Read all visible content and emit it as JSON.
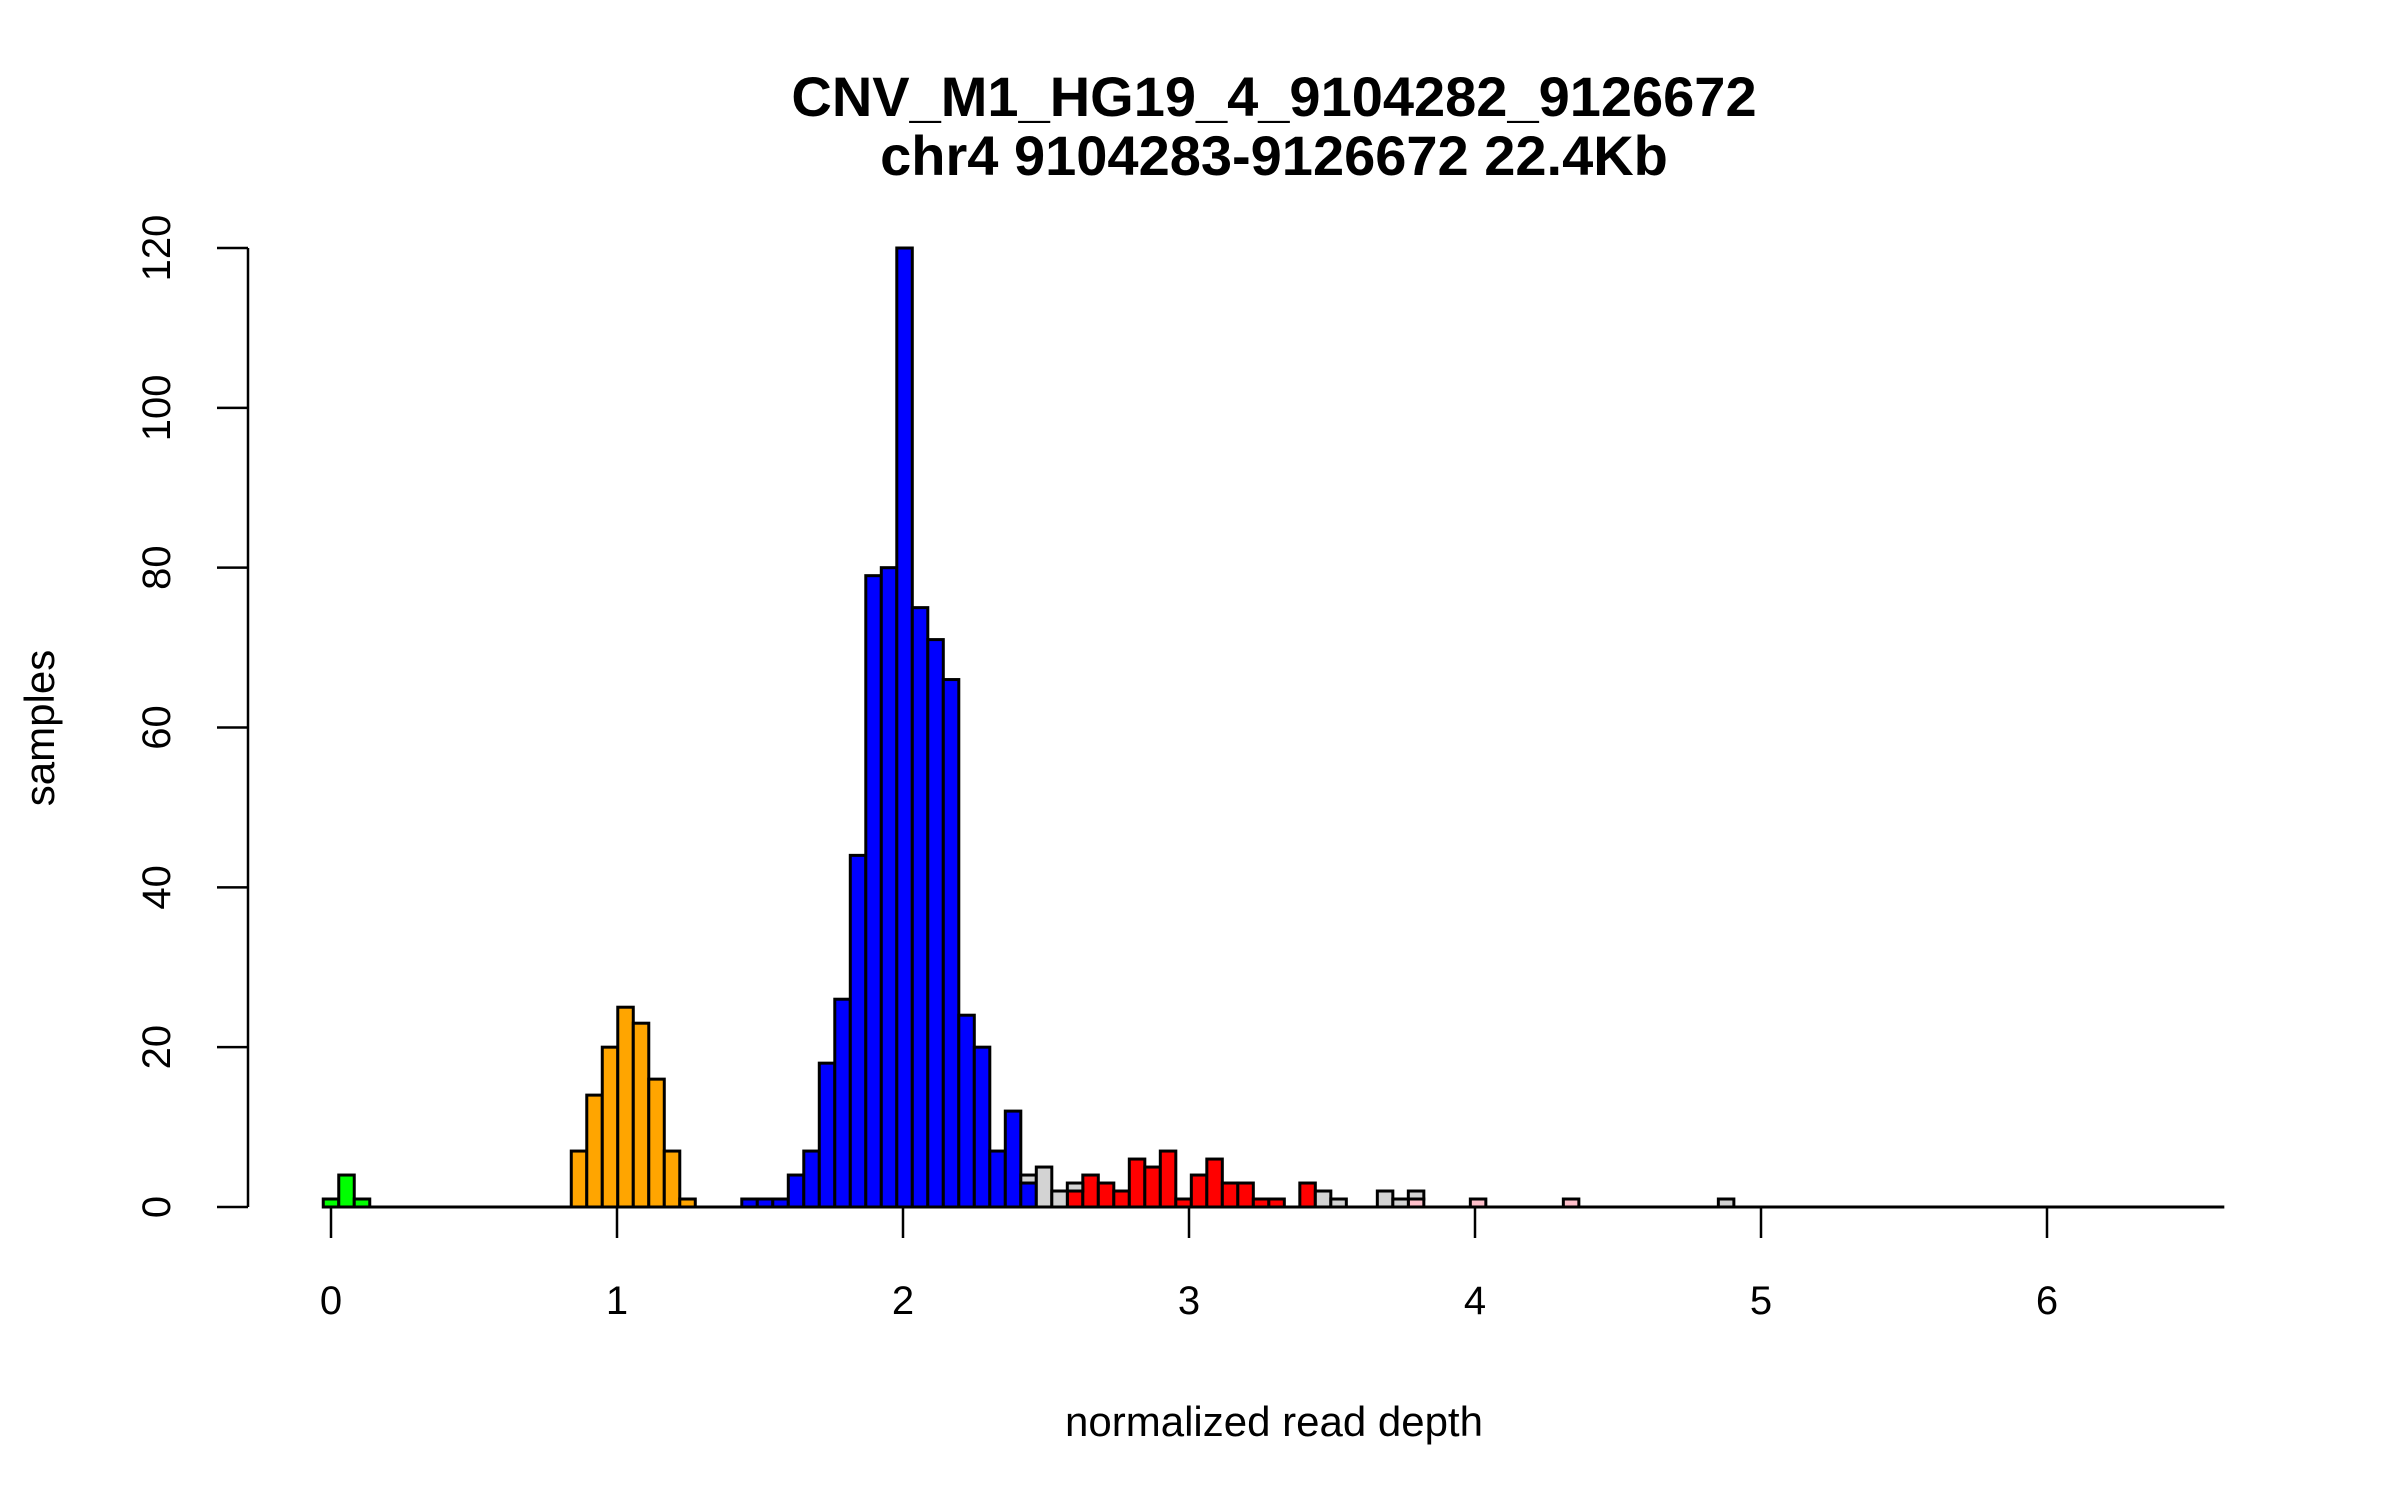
{
  "chart_data": {
    "type": "bar",
    "subtype": "histogram",
    "title": "CNV_M1_HG19_4_9104282_9126672",
    "subtitle": "chr4 9104283-9126672 22.4Kb",
    "xlabel": "normalized read depth",
    "ylabel": "samples",
    "xlim": [
      -0.27,
      6.62
    ],
    "ylim": [
      0,
      120
    ],
    "x_ticks": [
      "0",
      "1",
      "2",
      "3",
      "4",
      "5",
      "6"
    ],
    "y_ticks": [
      "0",
      "20",
      "40",
      "60",
      "80",
      "100",
      "120"
    ],
    "grid": false,
    "bin_width": 0.0542,
    "x_end": 6.62,
    "series": [
      {
        "name": "green",
        "color": "#00ff00",
        "first_bin": 0,
        "counts": [
          1,
          4,
          1
        ]
      },
      {
        "name": "orange",
        "color": "#ffa500",
        "first_bin": 16,
        "counts": [
          7,
          14,
          20,
          25,
          23,
          16,
          7,
          1
        ]
      },
      {
        "name": "blue",
        "color": "#0000ff",
        "first_bin": 27,
        "counts": [
          1,
          1,
          1,
          4,
          7,
          18,
          26,
          44,
          79,
          80,
          120,
          75,
          71,
          66,
          24,
          20,
          7,
          12,
          3
        ]
      },
      {
        "name": "red",
        "color": "#ff0000",
        "first_bin": 48,
        "counts": [
          2,
          4,
          3,
          2,
          6,
          5,
          7,
          1,
          4,
          6,
          3,
          3,
          1,
          1,
          0,
          3
        ]
      },
      {
        "name": "pink",
        "color": "#ffc0cb",
        "first_bin": 70,
        "counts": [
          1,
          0,
          0,
          0,
          1,
          0,
          0,
          0,
          0,
          0,
          1
        ]
      },
      {
        "name": "grey",
        "color": "#d3d3d3",
        "first_bin": 45,
        "counts": [
          1,
          5,
          2,
          1,
          0,
          0,
          0,
          0,
          0,
          0,
          0,
          0,
          0,
          0,
          0,
          0,
          0,
          0,
          0,
          2,
          1,
          0,
          0,
          2,
          1,
          1,
          0,
          0,
          0,
          0,
          0,
          0,
          0,
          0,
          0,
          0,
          0,
          0,
          0,
          0,
          0,
          0,
          0,
          0,
          0,
          1
        ]
      }
    ]
  }
}
